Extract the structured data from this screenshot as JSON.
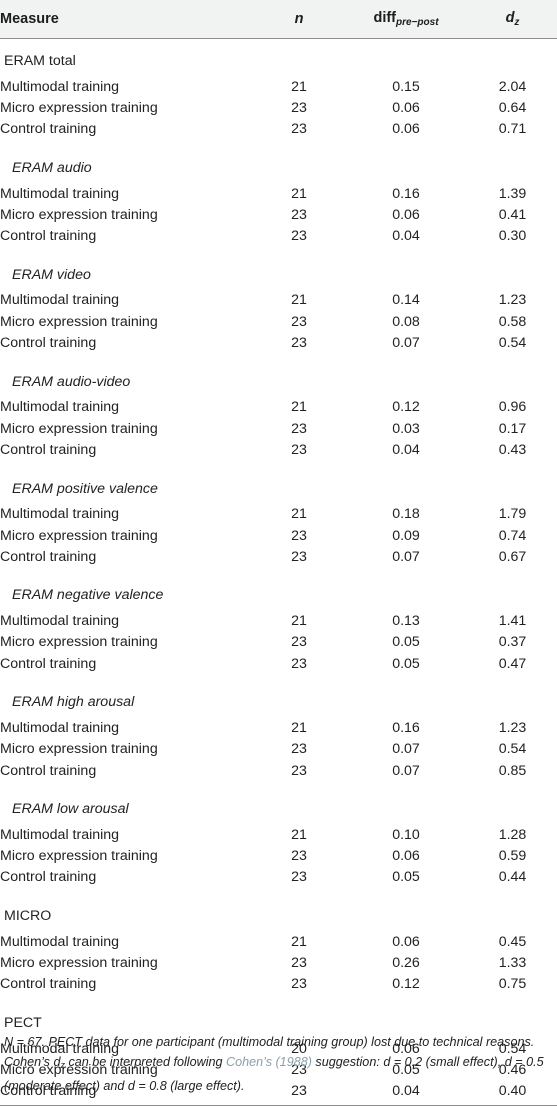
{
  "header": {
    "measure": "Measure",
    "n": "n",
    "diff_main": "diff",
    "diff_sub": "pre−post",
    "dz_main": "d",
    "dz_sub": "z"
  },
  "groups": [
    {
      "label": "ERAM total",
      "style": "plain",
      "rows": [
        {
          "label": "Multimodal training",
          "n": "21",
          "diff": "0.15",
          "dz": "2.04"
        },
        {
          "label": "Micro expression training",
          "n": "23",
          "diff": "0.06",
          "dz": "0.64"
        },
        {
          "label": "Control training",
          "n": "23",
          "diff": "0.06",
          "dz": "0.71"
        }
      ]
    },
    {
      "label": "ERAM audio",
      "style": "italic",
      "rows": [
        {
          "label": "Multimodal training",
          "n": "21",
          "diff": "0.16",
          "dz": "1.39"
        },
        {
          "label": "Micro expression training",
          "n": "23",
          "diff": "0.06",
          "dz": "0.41"
        },
        {
          "label": "Control training",
          "n": "23",
          "diff": "0.04",
          "dz": "0.30"
        }
      ]
    },
    {
      "label": "ERAM video",
      "style": "italic",
      "rows": [
        {
          "label": "Multimodal training",
          "n": "21",
          "diff": "0.14",
          "dz": "1.23"
        },
        {
          "label": "Micro expression training",
          "n": "23",
          "diff": "0.08",
          "dz": "0.58"
        },
        {
          "label": "Control training",
          "n": "23",
          "diff": "0.07",
          "dz": "0.54"
        }
      ]
    },
    {
      "label": "ERAM audio-video",
      "style": "italic",
      "rows": [
        {
          "label": "Multimodal training",
          "n": "21",
          "diff": "0.12",
          "dz": "0.96"
        },
        {
          "label": "Micro expression training",
          "n": "23",
          "diff": "0.03",
          "dz": "0.17"
        },
        {
          "label": "Control training",
          "n": "23",
          "diff": "0.04",
          "dz": "0.43"
        }
      ]
    },
    {
      "label": "ERAM positive valence",
      "style": "italic",
      "rows": [
        {
          "label": "Multimodal training",
          "n": "21",
          "diff": "0.18",
          "dz": "1.79"
        },
        {
          "label": "Micro expression training",
          "n": "23",
          "diff": "0.09",
          "dz": "0.74"
        },
        {
          "label": "Control training",
          "n": "23",
          "diff": "0.07",
          "dz": "0.67"
        }
      ]
    },
    {
      "label": "ERAM negative valence",
      "style": "italic",
      "rows": [
        {
          "label": "Multimodal training",
          "n": "21",
          "diff": "0.13",
          "dz": "1.41"
        },
        {
          "label": "Micro expression training",
          "n": "23",
          "diff": "0.05",
          "dz": "0.37"
        },
        {
          "label": "Control training",
          "n": "23",
          "diff": "0.05",
          "dz": "0.47"
        }
      ]
    },
    {
      "label": "ERAM high arousal",
      "style": "italic",
      "rows": [
        {
          "label": "Multimodal training",
          "n": "21",
          "diff": "0.16",
          "dz": "1.23"
        },
        {
          "label": "Micro expression training",
          "n": "23",
          "diff": "0.07",
          "dz": "0.54"
        },
        {
          "label": "Control training",
          "n": "23",
          "diff": "0.07",
          "dz": "0.85"
        }
      ]
    },
    {
      "label": "ERAM low arousal",
      "style": "italic",
      "rows": [
        {
          "label": "Multimodal training",
          "n": "21",
          "diff": "0.10",
          "dz": "1.28"
        },
        {
          "label": "Micro expression training",
          "n": "23",
          "diff": "0.06",
          "dz": "0.59"
        },
        {
          "label": "Control training",
          "n": "23",
          "diff": "0.05",
          "dz": "0.44"
        }
      ]
    },
    {
      "label": "MICRO",
      "style": "plain",
      "rows": [
        {
          "label": "Multimodal training",
          "n": "21",
          "diff": "0.06",
          "dz": "0.45"
        },
        {
          "label": "Micro expression training",
          "n": "23",
          "diff": "0.26",
          "dz": "1.33"
        },
        {
          "label": "Control training",
          "n": "23",
          "diff": "0.12",
          "dz": "0.75"
        }
      ]
    },
    {
      "label": "PECT",
      "style": "plain",
      "rows": [
        {
          "label": "Multimodal training",
          "n": "20",
          "diff": "0.06",
          "dz": "0.54"
        },
        {
          "label": "Micro expression training",
          "n": "23",
          "diff": "0.05",
          "dz": "0.46"
        },
        {
          "label": "Control training",
          "n": "23",
          "diff": "0.04",
          "dz": "0.40"
        }
      ]
    }
  ],
  "footnote": {
    "before": "N = 67. PECT data for one participant (multimodal training group) lost due to technical reasons. Cohen’s d",
    "dz_sub": "z",
    "middle": " can be interpreted following ",
    "citation": "Cohen’s (1988)",
    "after": " suggestion: d = 0.2 (small effect), d = 0.5 (moderate effect) and d = 0.8 (large effect)."
  },
  "colors": {
    "header_bg": "#f1f2f2",
    "rule": "#8d8d8d",
    "citation_link": "#8aa0ad",
    "text": "#222222"
  }
}
